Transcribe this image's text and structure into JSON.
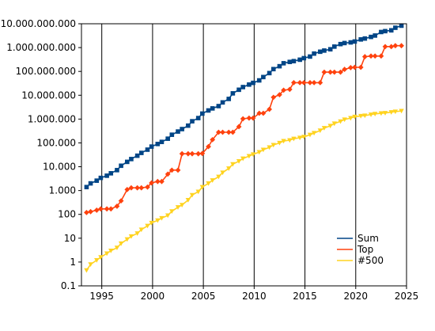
{
  "chart_data": {
    "type": "line",
    "title": "",
    "xlabel": "",
    "ylabel": "",
    "y_scale": "log",
    "xlim": [
      1993.0,
      2025.0
    ],
    "ylim": [
      0.1,
      10000000000
    ],
    "x_ticks": [
      1995,
      2000,
      2005,
      2010,
      2015,
      2020,
      2025
    ],
    "x_tick_labels": [
      "1995",
      "2000",
      "2005",
      "2010",
      "2015",
      "2020",
      "2025"
    ],
    "y_ticks": [
      0.1,
      1,
      10,
      100,
      1000,
      10000,
      100000,
      1000000,
      10000000,
      100000000,
      1000000000,
      10000000000
    ],
    "y_tick_labels": [
      "0.1",
      "1",
      "10",
      "100",
      "1.000",
      "10.000",
      "100.000",
      "1.000.000",
      "10.000.000",
      "100.000.000",
      "1.000.000.000",
      "10.000.000.000"
    ],
    "grid": "vertical lines at x ticks",
    "legend_position": "bottom-right",
    "series": [
      {
        "name": "Sum",
        "color": "#004586",
        "marker": "square",
        "x": [
          1993.5,
          1993.9,
          1994.5,
          1994.9,
          1995.5,
          1995.9,
          1996.5,
          1996.9,
          1997.5,
          1997.9,
          1998.5,
          1998.9,
          1999.5,
          1999.9,
          2000.5,
          2000.9,
          2001.5,
          2001.9,
          2002.5,
          2002.9,
          2003.5,
          2003.9,
          2004.5,
          2004.9,
          2005.5,
          2005.9,
          2006.5,
          2006.9,
          2007.5,
          2007.9,
          2008.5,
          2008.9,
          2009.5,
          2009.9,
          2010.5,
          2010.9,
          2011.5,
          2011.9,
          2012.5,
          2012.9,
          2013.5,
          2013.9,
          2014.5,
          2014.9,
          2015.5,
          2015.9,
          2016.5,
          2016.9,
          2017.5,
          2017.9,
          2018.5,
          2018.9,
          2019.5,
          2019.9,
          2020.5,
          2020.9,
          2021.5,
          2021.9,
          2022.5,
          2022.9,
          2023.5,
          2023.9,
          2024.5
        ],
        "values": [
          1400,
          2000,
          2600,
          3400,
          4200,
          5300,
          7200,
          11000,
          16000,
          21000,
          29000,
          38000,
          52000,
          70000,
          90000,
          110000,
          150000,
          220000,
          300000,
          380000,
          530000,
          810000,
          1100000,
          1700000,
          2300000,
          2800000,
          3500000,
          5000000,
          7000000,
          12000000,
          17000000,
          22000000,
          28000000,
          33000000,
          42000000,
          58000000,
          85000000,
          125000000,
          165000000,
          220000000,
          250000000,
          270000000,
          310000000,
          360000000,
          420000000,
          560000000,
          670000000,
          750000000,
          850000000,
          1100000000,
          1400000000,
          1550000000,
          1650000000,
          1800000000,
          2200000000,
          2400000000,
          2800000000,
          3200000000,
          4500000000,
          4900000000,
          5300000000,
          6800000000,
          8300000000
        ]
      },
      {
        "name": "Top",
        "color": "#ff420e",
        "marker": "diamond",
        "x": [
          1993.5,
          1993.9,
          1994.5,
          1994.9,
          1995.5,
          1995.9,
          1996.5,
          1996.9,
          1997.5,
          1997.9,
          1998.5,
          1998.9,
          1999.5,
          1999.9,
          2000.5,
          2000.9,
          2001.5,
          2001.9,
          2002.5,
          2002.9,
          2003.5,
          2003.9,
          2004.5,
          2004.9,
          2005.5,
          2005.9,
          2006.5,
          2006.9,
          2007.5,
          2007.9,
          2008.5,
          2008.9,
          2009.5,
          2009.9,
          2010.5,
          2010.9,
          2011.5,
          2011.9,
          2012.5,
          2012.9,
          2013.5,
          2013.9,
          2014.5,
          2014.9,
          2015.5,
          2015.9,
          2016.5,
          2016.9,
          2017.5,
          2017.9,
          2018.5,
          2018.9,
          2019.5,
          2019.9,
          2020.5,
          2020.9,
          2021.5,
          2021.9,
          2022.5,
          2022.9,
          2023.5,
          2023.9,
          2024.5
        ],
        "values": [
          120,
          130,
          150,
          170,
          170,
          170,
          220,
          370,
          1100,
          1300,
          1300,
          1300,
          1400,
          2100,
          2400,
          2400,
          4900,
          7200,
          7200,
          35000,
          35000,
          35000,
          35000,
          36000,
          70000,
          137000,
          280000,
          280000,
          280000,
          280000,
          480000,
          1030000,
          1100000,
          1100000,
          1760000,
          1760000,
          2570000,
          8200000,
          10500000,
          16300000,
          17600000,
          33800000,
          33800000,
          33800000,
          33800000,
          33800000,
          33800000,
          93000000,
          93000000,
          93000000,
          93000000,
          122000000,
          144000000,
          149000000,
          149000000,
          415000000,
          442000000,
          442000000,
          442000000,
          1100000000,
          1100000000,
          1200000000,
          1200000000
        ]
      },
      {
        "name": "#500",
        "color": "#ffd320",
        "marker": "triangle",
        "x": [
          1993.5,
          1993.9,
          1994.5,
          1994.9,
          1995.5,
          1995.9,
          1996.5,
          1996.9,
          1997.5,
          1997.9,
          1998.5,
          1998.9,
          1999.5,
          1999.9,
          2000.5,
          2000.9,
          2001.5,
          2001.9,
          2002.5,
          2002.9,
          2003.5,
          2003.9,
          2004.5,
          2004.9,
          2005.5,
          2005.9,
          2006.5,
          2006.9,
          2007.5,
          2007.9,
          2008.5,
          2008.9,
          2009.5,
          2009.9,
          2010.5,
          2010.9,
          2011.5,
          2011.9,
          2012.5,
          2012.9,
          2013.5,
          2013.9,
          2014.5,
          2014.9,
          2015.5,
          2015.9,
          2016.5,
          2016.9,
          2017.5,
          2017.9,
          2018.5,
          2018.9,
          2019.5,
          2019.9,
          2020.5,
          2020.9,
          2021.5,
          2021.9,
          2022.5,
          2022.9,
          2023.5,
          2023.9,
          2024.5
        ],
        "values": [
          0.45,
          0.8,
          1.2,
          1.6,
          2.3,
          3.0,
          4.0,
          6.0,
          9.0,
          12.0,
          16.0,
          23.0,
          33.0,
          44.0,
          56.0,
          70.0,
          90.0,
          135.0,
          200.0,
          250.0,
          400.0,
          650.0,
          900.0,
          1400.0,
          2000.0,
          2700.0,
          3800.0,
          5700.0,
          8500.0,
          12800.0,
          17000.0,
          22000.0,
          28000.0,
          33000.0,
          41000.0,
          52000.0,
          65000.0,
          82000.0,
          100000.0,
          120000.0,
          130000.0,
          150000.0,
          165000.0,
          180000.0,
          220000.0,
          260000.0,
          330000.0,
          420000.0,
          520000.0,
          650000.0,
          800000.0,
          960000.0,
          1100000.0,
          1250000.0,
          1350000.0,
          1400000.0,
          1550000.0,
          1650000.0,
          1750000.0,
          1800000.0,
          1950000.0,
          2050000.0,
          2200000.0
        ]
      }
    ]
  }
}
